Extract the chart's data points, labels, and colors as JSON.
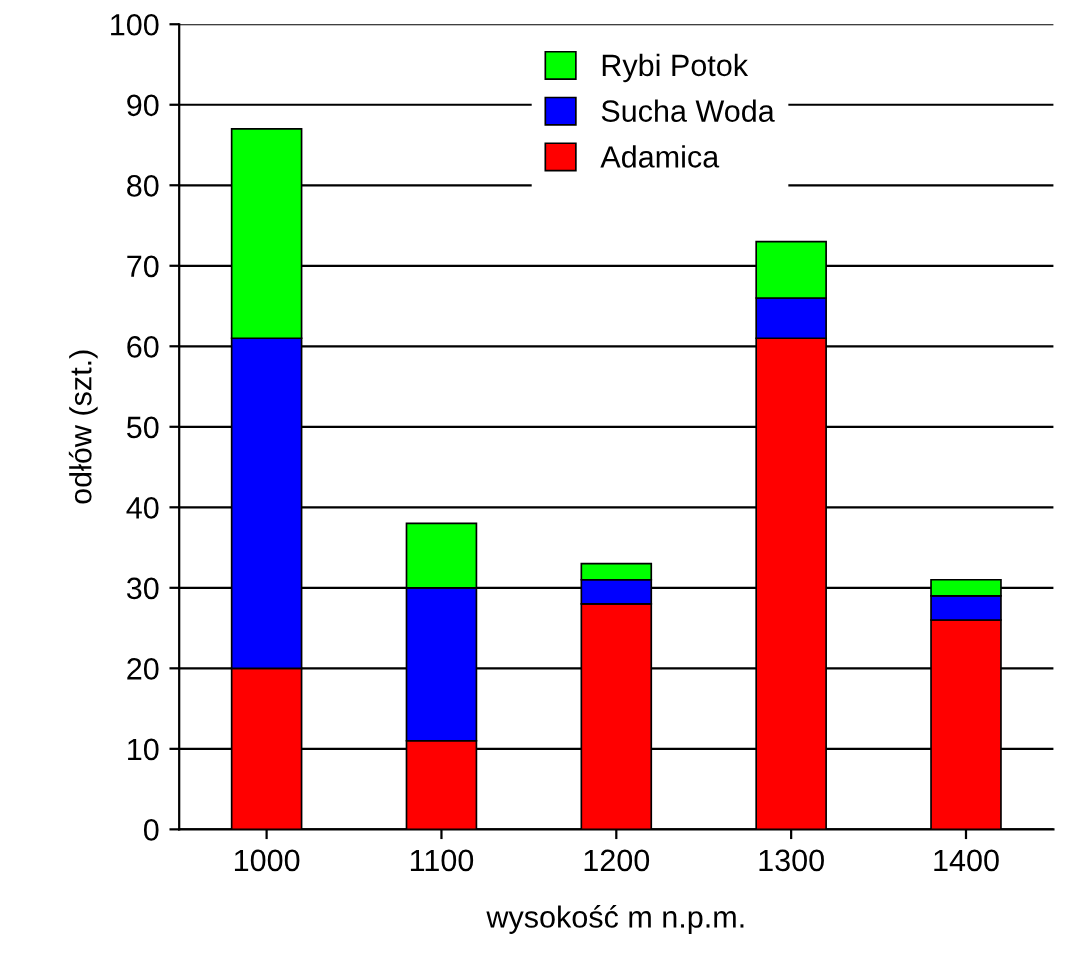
{
  "chart_data": {
    "type": "bar",
    "stacked": true,
    "xlabel": "wysokość m n.p.m.",
    "ylabel": "odłów (szt.)",
    "categories": [
      "1000",
      "1100",
      "1200",
      "1300",
      "1400"
    ],
    "series": [
      {
        "name": "Adamica",
        "color": "#ff0000",
        "values": [
          20,
          11,
          28,
          61,
          26
        ]
      },
      {
        "name": "Sucha Woda",
        "color": "#0000ff",
        "values": [
          41,
          19,
          3,
          5,
          3
        ]
      },
      {
        "name": "Rybi Potok",
        "color": "#00ff00",
        "values": [
          26,
          8,
          2,
          7,
          2
        ]
      }
    ],
    "ylim": [
      0,
      100
    ],
    "yticks": [
      0,
      10,
      20,
      30,
      40,
      50,
      60,
      70,
      80,
      90,
      100
    ],
    "grid": "y",
    "legend": "top"
  }
}
